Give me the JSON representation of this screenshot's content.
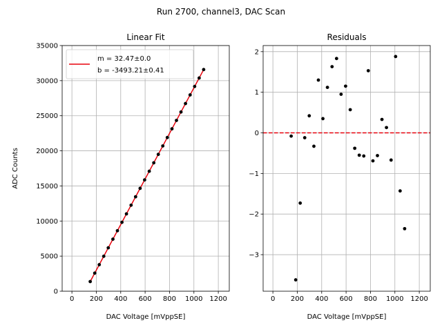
{
  "suptitle": "Run 2700, channel3, DAC Scan",
  "chart_data": [
    {
      "type": "scatter",
      "title": "Linear Fit",
      "xlabel": "DAC Voltage [mVppSE]",
      "ylabel": "ADC Counts",
      "xlim": [
        -80,
        1290
      ],
      "ylim": [
        0,
        35000
      ],
      "xticks": [
        0,
        200,
        400,
        600,
        800,
        1000,
        1200
      ],
      "yticks": [
        0,
        5000,
        10000,
        15000,
        20000,
        25000,
        30000,
        35000
      ],
      "grid": true,
      "legend_position": "upper-left",
      "x": [
        150,
        187,
        224,
        261,
        298,
        336,
        373,
        410,
        447,
        485,
        522,
        559,
        596,
        634,
        671,
        708,
        745,
        782,
        820,
        857,
        894,
        931,
        969,
        1006,
        1043,
        1080
      ],
      "y": [
        1377,
        2578,
        3780,
        4981,
        6183,
        7416,
        8618,
        9819,
        11021,
        12255,
        13456,
        14658,
        15859,
        17093,
        18294,
        19496,
        20697,
        21899,
        23133,
        24334,
        25536,
        26737,
        27971,
        29173,
        30374,
        31576
      ],
      "fit": {
        "x": [
          150,
          1080
        ],
        "y": [
          1377,
          31576
        ],
        "legend_m": "m = 32.47±0.0",
        "legend_b": "b = -3493.21±0.41",
        "color": "#e8000b"
      },
      "point_color": "#000000"
    },
    {
      "type": "scatter",
      "title": "Residuals",
      "xlabel": "DAC Voltage [mVppSE]",
      "ylabel": "",
      "xlim": [
        -80,
        1290
      ],
      "ylim": [
        -3.9,
        2.15
      ],
      "xticks": [
        0,
        200,
        400,
        600,
        800,
        1000,
        1200
      ],
      "yticks": [
        -3,
        -2,
        -1,
        0,
        1,
        2
      ],
      "grid": true,
      "x": [
        150,
        187,
        224,
        261,
        298,
        336,
        373,
        410,
        447,
        485,
        522,
        559,
        596,
        634,
        671,
        708,
        745,
        782,
        820,
        857,
        894,
        931,
        969,
        1006,
        1043,
        1080
      ],
      "y": [
        -0.08,
        -3.62,
        -1.73,
        -0.12,
        0.42,
        -0.33,
        1.3,
        0.35,
        1.12,
        1.63,
        1.83,
        0.95,
        1.15,
        0.57,
        -0.38,
        -0.55,
        -0.57,
        1.53,
        -0.69,
        -0.56,
        0.33,
        0.13,
        -0.67,
        1.88,
        -1.43,
        -2.36
      ],
      "zero_line_color": "#e8000b",
      "point_color": "#000000"
    }
  ]
}
